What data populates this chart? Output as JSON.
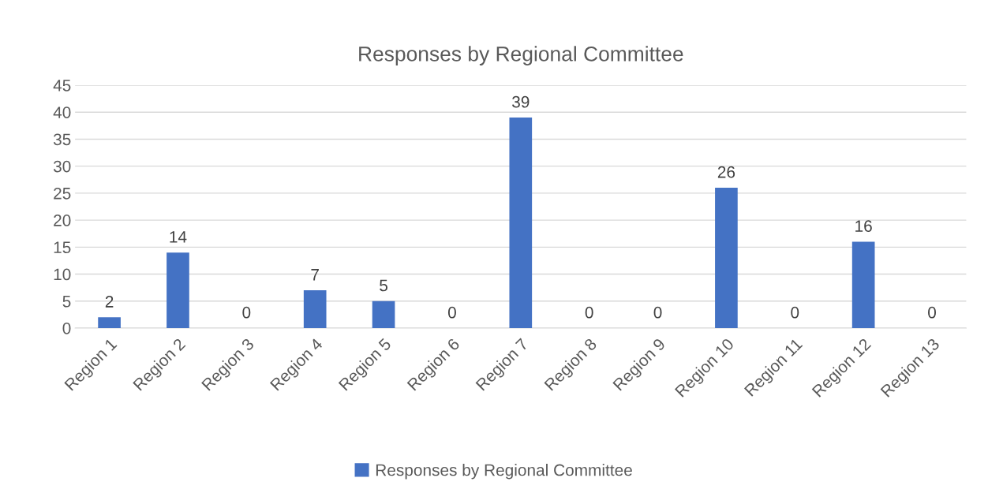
{
  "chart_data": {
    "type": "bar",
    "title": "Responses by Regional Committee",
    "categories": [
      "Region 1",
      "Region 2",
      "Region 3",
      "Region 4",
      "Region 5",
      "Region 6",
      "Region 7",
      "Region 8",
      "Region 9",
      "Region 10",
      "Region 11",
      "Region 12",
      "Region 13"
    ],
    "series": [
      {
        "name": "Responses by Regional Committee",
        "color": "#4472c4",
        "values": [
          2,
          14,
          0,
          7,
          5,
          0,
          39,
          0,
          0,
          26,
          0,
          16,
          0
        ]
      }
    ],
    "ylim": [
      0,
      45
    ],
    "yticks": [
      0,
      5,
      10,
      15,
      20,
      25,
      30,
      35,
      40,
      45
    ],
    "grid": "y",
    "legend": "bottom",
    "data_labels": true
  }
}
